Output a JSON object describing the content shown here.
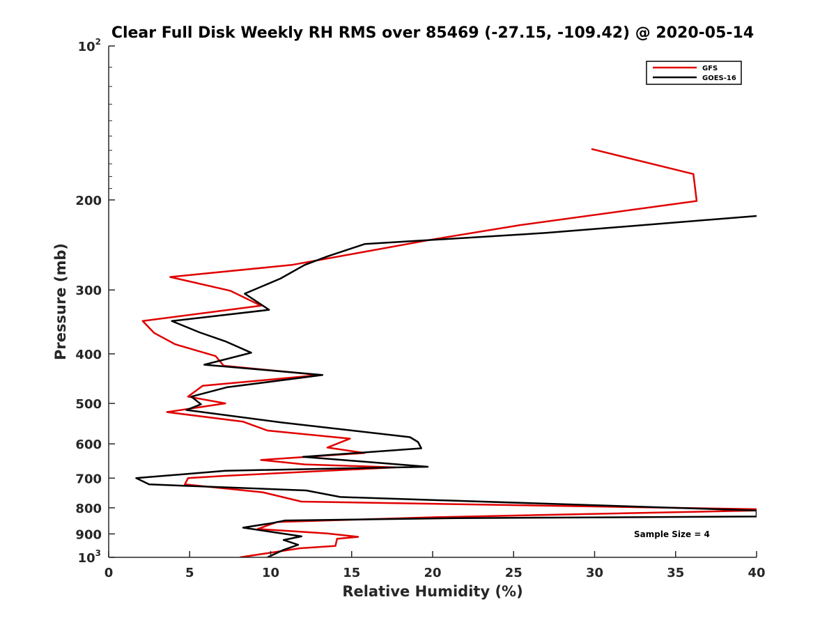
{
  "chart_data": {
    "type": "line",
    "title": "Clear Full Disk Weekly RH RMS over 85469 (-27.15, -109.42) @ 2020-05-14",
    "xlabel": "Relative Humidity (%)",
    "ylabel": "Pressure (mb)",
    "xlim": [
      0,
      40
    ],
    "ylim": [
      100,
      1000
    ],
    "y_scale": "log",
    "y_reversed": true,
    "grid": false,
    "legend_position": "top-right",
    "x_ticks": [
      0,
      5,
      10,
      15,
      20,
      25,
      30,
      35,
      40
    ],
    "y_ticks": [
      {
        "value": 100,
        "label": "10",
        "sup": "2"
      },
      {
        "value": 200,
        "label": "200"
      },
      {
        "value": 300,
        "label": "300"
      },
      {
        "value": 400,
        "label": "400"
      },
      {
        "value": 500,
        "label": "500"
      },
      {
        "value": 600,
        "label": "600"
      },
      {
        "value": 700,
        "label": "700"
      },
      {
        "value": 800,
        "label": "800"
      },
      {
        "value": 900,
        "label": "900"
      },
      {
        "value": 1000,
        "label": "10",
        "sup": "3"
      }
    ],
    "annotation": "Sample Size = 4",
    "series": [
      {
        "name": "GFS",
        "color": "#e00000",
        "points": [
          [
            29.8,
            159
          ],
          [
            36.1,
            178
          ],
          [
            36.3,
            201
          ],
          [
            25.4,
            224
          ],
          [
            20.0,
            239
          ],
          [
            14.5,
            257
          ],
          [
            11.3,
            268
          ],
          [
            3.8,
            283
          ],
          [
            7.5,
            301
          ],
          [
            9.4,
            322
          ],
          [
            2.1,
            345
          ],
          [
            2.8,
            364
          ],
          [
            4.1,
            383
          ],
          [
            6.6,
            404
          ],
          [
            7.1,
            422
          ],
          [
            13.0,
            440
          ],
          [
            5.8,
            462
          ],
          [
            4.9,
            485
          ],
          [
            7.2,
            500
          ],
          [
            3.6,
            520
          ],
          [
            8.3,
            543
          ],
          [
            9.8,
            565
          ],
          [
            14.9,
            586
          ],
          [
            13.5,
            610
          ],
          [
            15.8,
            625
          ],
          [
            9.4,
            645
          ],
          [
            12.1,
            658
          ],
          [
            17.7,
            667
          ],
          [
            7.1,
            693
          ],
          [
            4.9,
            700
          ],
          [
            4.7,
            720
          ],
          [
            9.5,
            746
          ],
          [
            11.9,
            778
          ],
          [
            40.0,
            805
          ],
          [
            40.0,
            810
          ],
          [
            20.0,
            835
          ],
          [
            10.4,
            853
          ],
          [
            9.2,
            880
          ],
          [
            13.5,
            898
          ],
          [
            15.4,
            912
          ],
          [
            14.1,
            920
          ],
          [
            14.0,
            950
          ],
          [
            11.8,
            960
          ],
          [
            8.1,
            1000
          ]
        ]
      },
      {
        "name": "GOES-16",
        "color": "#000000",
        "points": [
          [
            40.0,
            215
          ],
          [
            27.0,
            232
          ],
          [
            15.8,
            244
          ],
          [
            13.5,
            258
          ],
          [
            12.1,
            268
          ],
          [
            10.6,
            285
          ],
          [
            8.4,
            305
          ],
          [
            9.9,
            328
          ],
          [
            3.9,
            345
          ],
          [
            5.6,
            363
          ],
          [
            7.2,
            378
          ],
          [
            8.8,
            398
          ],
          [
            5.9,
            420
          ],
          [
            13.2,
            440
          ],
          [
            7.3,
            465
          ],
          [
            5.1,
            485
          ],
          [
            5.7,
            502
          ],
          [
            4.8,
            515
          ],
          [
            10.7,
            545
          ],
          [
            18.6,
            582
          ],
          [
            19.1,
            595
          ],
          [
            19.3,
            612
          ],
          [
            12.0,
            636
          ],
          [
            19.7,
            665
          ],
          [
            7.2,
            677
          ],
          [
            1.7,
            700
          ],
          [
            2.5,
            720
          ],
          [
            12.2,
            740
          ],
          [
            14.3,
            762
          ],
          [
            40.0,
            810
          ],
          [
            40.0,
            832
          ],
          [
            21.5,
            838
          ],
          [
            10.9,
            847
          ],
          [
            10.1,
            857
          ],
          [
            8.3,
            875
          ],
          [
            11.9,
            910
          ],
          [
            10.8,
            925
          ],
          [
            11.7,
            945
          ],
          [
            10.8,
            967
          ],
          [
            9.8,
            1000
          ]
        ]
      }
    ]
  }
}
